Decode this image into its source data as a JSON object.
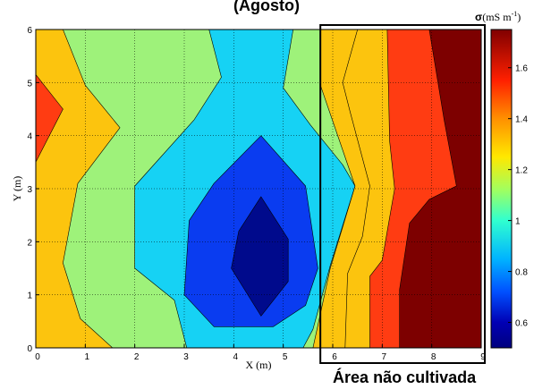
{
  "chart_data": {
    "type": "contour",
    "title_fragment": "(Agosto)",
    "xlabel": "X (m)",
    "ylabel": "Y (m)",
    "xlim": [
      0,
      9
    ],
    "ylim": [
      0,
      6
    ],
    "xticks": [
      "0",
      "1",
      "2",
      "3",
      "4",
      "5",
      "6",
      "7",
      "8",
      "9"
    ],
    "yticks": [
      "0",
      "1",
      "2",
      "3",
      "4",
      "5",
      "6"
    ],
    "grid": true,
    "colorbar": {
      "label_symbol": "σ",
      "label_unit": "(mS m",
      "label_exp": "-1",
      "label_close": ")",
      "range": [
        0.5,
        1.75
      ],
      "ticks": [
        "0.6",
        "0.8",
        "1",
        "1.2",
        "1.4",
        "1.6"
      ],
      "tick_values": [
        0.6,
        0.8,
        1.0,
        1.2,
        1.4,
        1.6
      ]
    },
    "levels": [
      {
        "level": 0.6,
        "color": "#000a8c"
      },
      {
        "level": 0.8,
        "color": "#0a3cf0"
      },
      {
        "level": 1.0,
        "color": "#16d2f4"
      },
      {
        "level": 1.2,
        "color": "#9ef27a"
      },
      {
        "level": 1.4,
        "color": "#fcc40e"
      },
      {
        "level": 1.6,
        "color": "#ff3c12"
      },
      {
        "level": 1.75,
        "color": "#7d0000"
      }
    ],
    "regions": [
      {
        "name": "orange",
        "level": 1.4,
        "points": [
          [
            0,
            0
          ],
          [
            9,
            0
          ],
          [
            9,
            6
          ],
          [
            0,
            6
          ]
        ]
      },
      {
        "name": "green",
        "level": 1.2,
        "points": [
          [
            0.55,
            6
          ],
          [
            5.75,
            6
          ],
          [
            5.75,
            4.95
          ],
          [
            6.45,
            3.05
          ],
          [
            5.95,
            1.5
          ],
          [
            5.6,
            0
          ],
          [
            1.55,
            0
          ],
          [
            0.9,
            0.55
          ],
          [
            0.55,
            1.6
          ],
          [
            0.85,
            3.1
          ],
          [
            1.7,
            4.15
          ],
          [
            1.0,
            4.95
          ]
        ]
      },
      {
        "name": "cyan",
        "level": 1.0,
        "points": [
          [
            3.5,
            6
          ],
          [
            5.2,
            6
          ],
          [
            5.0,
            4.9
          ],
          [
            5.55,
            4.2
          ],
          [
            6.2,
            3.45
          ],
          [
            6.45,
            3.05
          ],
          [
            5.95,
            1.55
          ],
          [
            5.6,
            0.35
          ],
          [
            5.4,
            0
          ],
          [
            3.05,
            0
          ],
          [
            2.8,
            0.9
          ],
          [
            2.0,
            1.5
          ],
          [
            2.0,
            3.05
          ],
          [
            3.2,
            4.3
          ],
          [
            3.75,
            5.1
          ]
        ]
      },
      {
        "name": "blue",
        "level": 0.8,
        "points": [
          [
            4.55,
            4.0
          ],
          [
            5.45,
            3.05
          ],
          [
            5.7,
            1.5
          ],
          [
            5.45,
            0.8
          ],
          [
            4.8,
            0.4
          ],
          [
            3.6,
            0.4
          ],
          [
            3.0,
            1.0
          ],
          [
            3.1,
            2.4
          ],
          [
            3.6,
            3.1
          ]
        ]
      },
      {
        "name": "navy",
        "level": 0.6,
        "points": [
          [
            4.55,
            2.85
          ],
          [
            5.1,
            2.05
          ],
          [
            5.1,
            1.25
          ],
          [
            4.55,
            0.6
          ],
          [
            3.95,
            1.5
          ],
          [
            4.1,
            2.2
          ]
        ]
      },
      {
        "name": "orange-right",
        "level": 1.4,
        "points": [
          [
            6.5,
            6
          ],
          [
            9,
            6
          ],
          [
            9,
            0
          ],
          [
            6.25,
            0
          ],
          [
            6.3,
            1.4
          ],
          [
            6.6,
            2.1
          ],
          [
            6.75,
            3.05
          ],
          [
            6.35,
            4.45
          ],
          [
            6.2,
            5.0
          ]
        ]
      },
      {
        "name": "red-right",
        "level": 1.6,
        "points": [
          [
            7.1,
            6
          ],
          [
            9,
            6
          ],
          [
            9,
            0
          ],
          [
            6.75,
            0
          ],
          [
            6.75,
            1.35
          ],
          [
            7.0,
            1.65
          ],
          [
            7.25,
            3.0
          ],
          [
            7.15,
            3.9
          ]
        ]
      },
      {
        "name": "darkred-right",
        "level": 1.75,
        "points": [
          [
            7.95,
            6
          ],
          [
            9,
            6
          ],
          [
            9,
            0
          ],
          [
            7.35,
            0
          ],
          [
            7.35,
            1.1
          ],
          [
            7.55,
            2.35
          ],
          [
            7.95,
            2.8
          ],
          [
            8.5,
            3.05
          ],
          [
            8.25,
            4.3
          ]
        ]
      },
      {
        "name": "green-left",
        "level": 1.2,
        "points": [
          [
            0,
            4.5
          ],
          [
            0,
            5.0
          ],
          [
            0.3,
            4.65
          ],
          [
            0.55,
            4.5
          ],
          [
            0.3,
            4.35
          ]
        ]
      },
      {
        "name": "red-left",
        "level": 1.6,
        "points": [
          [
            0,
            4.5
          ],
          [
            0,
            5.15
          ],
          [
            0.55,
            4.5
          ],
          [
            0,
            3.5
          ]
        ]
      }
    ],
    "annotation_box": {
      "x_start": 5.75,
      "x_end": 9.0,
      "label": "Área não cultivada"
    }
  }
}
